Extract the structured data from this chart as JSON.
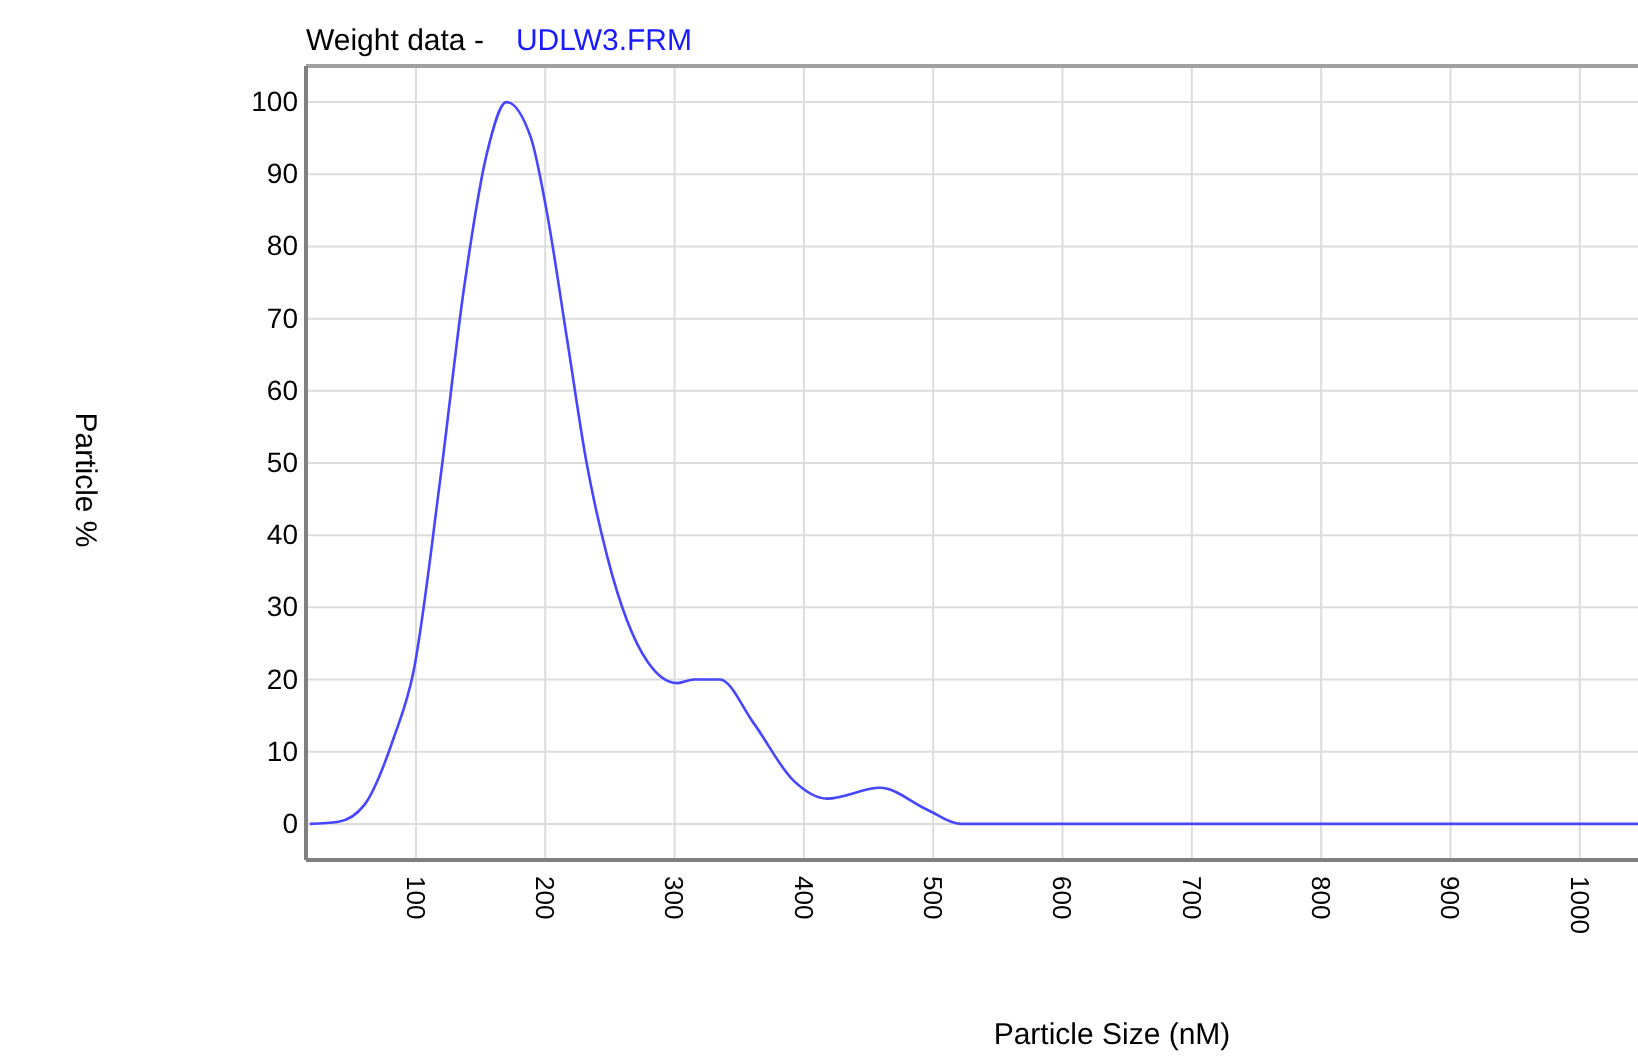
{
  "chart_data": {
    "type": "line",
    "title": "Weight data -",
    "subtitle": "UDLW3.FRM",
    "xlabel": "Particle Size (nM)",
    "ylabel": "Particle %",
    "xlim": [
      15,
      1045
    ],
    "ylim": [
      -5,
      105
    ],
    "xticks": [
      100,
      200,
      300,
      400,
      500,
      600,
      700,
      800,
      900,
      1000
    ],
    "yticks": [
      0,
      10,
      20,
      30,
      40,
      50,
      60,
      70,
      80,
      90,
      100
    ],
    "grid": true,
    "marker": "none",
    "line_style": "solid",
    "series": [
      {
        "color": "#4646ff",
        "x": [
          18,
          40,
          60,
          83,
          98,
          119,
          137,
          155,
          170,
          189,
          201,
          217,
          232,
          248,
          279,
          302,
          315,
          335,
          361,
          392,
          418,
          459,
          495,
          521,
          600,
          800,
          1045
        ],
        "values": [
          0,
          0.3,
          2.6,
          12,
          21,
          48,
          74,
          93,
          100,
          95,
          85,
          67,
          50,
          37,
          22.5,
          19.5,
          20,
          20,
          14,
          6,
          3.5,
          5,
          2,
          0,
          0,
          0,
          0
        ]
      }
    ]
  }
}
